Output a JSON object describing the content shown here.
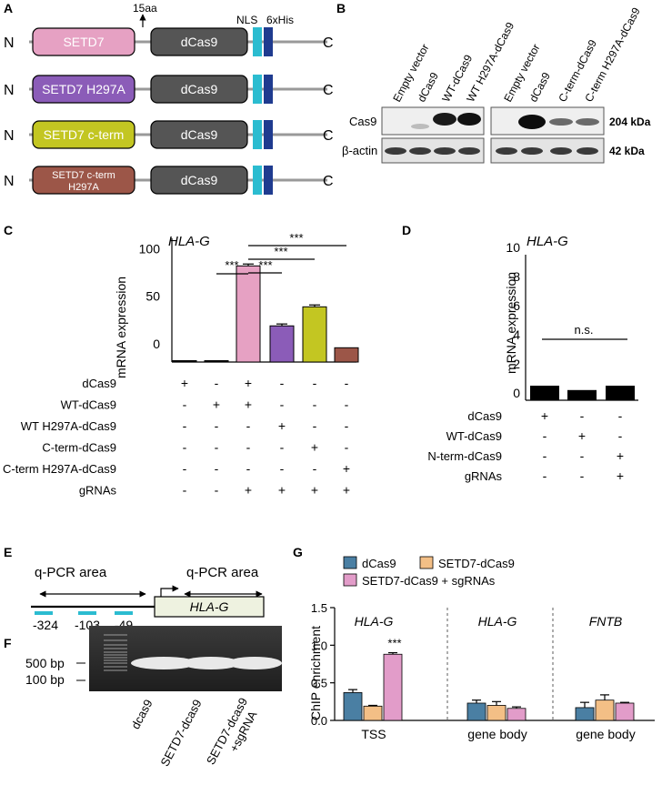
{
  "panel_letters": [
    "A",
    "B",
    "C",
    "D",
    "E",
    "F",
    "G"
  ],
  "panelA": {
    "n_label": "N",
    "c_label": "C",
    "linker_label": "15aa",
    "nls_label": "NLS",
    "his_label": "6xHis",
    "dcas9_label": "dCas9",
    "constructs": [
      {
        "label": "SETD7",
        "color": "#e6a1c3"
      },
      {
        "label": "SETD7 H297A",
        "color": "#8b5cb8"
      },
      {
        "label": "SETD7 c-term",
        "color": "#c3c622"
      },
      {
        "label": "SETD7 c-term H297A",
        "color": "#9c5648"
      }
    ],
    "nls_color": "#2bbcd0",
    "his_color": "#1f3b8f",
    "dcas9_color": "#555555"
  },
  "panelB": {
    "lanes_left": [
      "Empty vector",
      "dCas9",
      "WT-dCas9",
      "WT H297A-dCas9"
    ],
    "lanes_right": [
      "Empty vector",
      "dCas9",
      "C-term-dCas9",
      "C-term H297A-dCas9"
    ],
    "row_labels": [
      "Cas9",
      "β-actin"
    ],
    "sizes": [
      "204 kDa",
      "42 kDa"
    ]
  },
  "chart_data": [
    {
      "id": "C",
      "type": "bar",
      "title": "HLA-G",
      "ylabel": "mRNA  expression",
      "ylim": [
        0,
        130
      ],
      "yticks": [
        "0",
        "50",
        "100"
      ],
      "values": [
        0.5,
        0.5,
        101,
        38,
        58,
        15
      ],
      "errors": [
        0,
        0,
        2,
        2,
        2,
        0
      ],
      "colors": [
        "#000000",
        "#000000",
        "#e6a1c3",
        "#8b5cb8",
        "#c3c622",
        "#9c5648"
      ],
      "row_labels": [
        "dCas9",
        "WT-dCas9",
        "WT H297A-dCas9",
        "C-term-dCas9",
        "C-term H297A-dCas9",
        "gRNAs"
      ],
      "rows": [
        [
          "+",
          "-",
          "+",
          "-",
          "-",
          "-"
        ],
        [
          "-",
          "+",
          "+",
          "-",
          "-",
          "-"
        ],
        [
          "-",
          "-",
          "-",
          "+",
          "-",
          "-"
        ],
        [
          "-",
          "-",
          "-",
          "-",
          "+",
          "-"
        ],
        [
          "-",
          "-",
          "-",
          "-",
          "-",
          "+"
        ],
        [
          "-",
          "-",
          "+",
          "+",
          "+",
          "+"
        ]
      ],
      "significance": [
        "***",
        "***",
        "***",
        "***"
      ]
    },
    {
      "id": "D",
      "type": "bar",
      "title": "HLA-G",
      "ylabel": "mRNA  expression",
      "ylim": [
        0,
        10
      ],
      "yticks": [
        "0",
        "2",
        "4",
        "6",
        "8",
        "10"
      ],
      "values": [
        1.0,
        0.7,
        1.0
      ],
      "colors": [
        "#000000",
        "#000000",
        "#000000"
      ],
      "row_labels": [
        "dCas9",
        "WT-dCas9",
        "N-term-dCas9",
        "gRNAs"
      ],
      "rows": [
        [
          "+",
          "-",
          "-"
        ],
        [
          "-",
          "+",
          "-"
        ],
        [
          "-",
          "-",
          "+"
        ],
        [
          "-",
          "-",
          "+"
        ]
      ],
      "significance": "n.s."
    },
    {
      "id": "G",
      "type": "bar",
      "ylabel": "ChIP enrichment",
      "ylim": [
        0,
        1.5
      ],
      "yticks": [
        "0.0",
        "0.5",
        "1.0",
        "1.5"
      ],
      "series": [
        {
          "name": "dCas9",
          "color": "#4a7fa3",
          "values": [
            0.37,
            0.23,
            0.17
          ],
          "errors": [
            0.04,
            0.04,
            0.07
          ]
        },
        {
          "name": "SETD7-dCas9",
          "color": "#f3bf86",
          "values": [
            0.19,
            0.2,
            0.27
          ],
          "errors": [
            0.01,
            0.05,
            0.07
          ]
        },
        {
          "name": "SETD7-dCas9 + sgRNAs",
          "color": "#e29cc9",
          "values": [
            0.88,
            0.16,
            0.23
          ],
          "errors": [
            0.02,
            0.02,
            0.01
          ]
        }
      ],
      "groups": [
        {
          "gene": "HLA-G",
          "region": "TSS"
        },
        {
          "gene": "HLA-G",
          "region": "gene body"
        },
        {
          "gene": "FNTB",
          "region": "gene body"
        }
      ],
      "significance": "***"
    }
  ],
  "panelE": {
    "area_label": "q-PCR area",
    "gene_label": "HLA-G",
    "positions": [
      "-324",
      "-103",
      "-49"
    ]
  },
  "panelF": {
    "markers": [
      "500 bp",
      "100 bp"
    ],
    "lanes": [
      "dcas9",
      "SETD7-dcas9",
      "SETD7-dcas9\n+sgRNA"
    ]
  }
}
